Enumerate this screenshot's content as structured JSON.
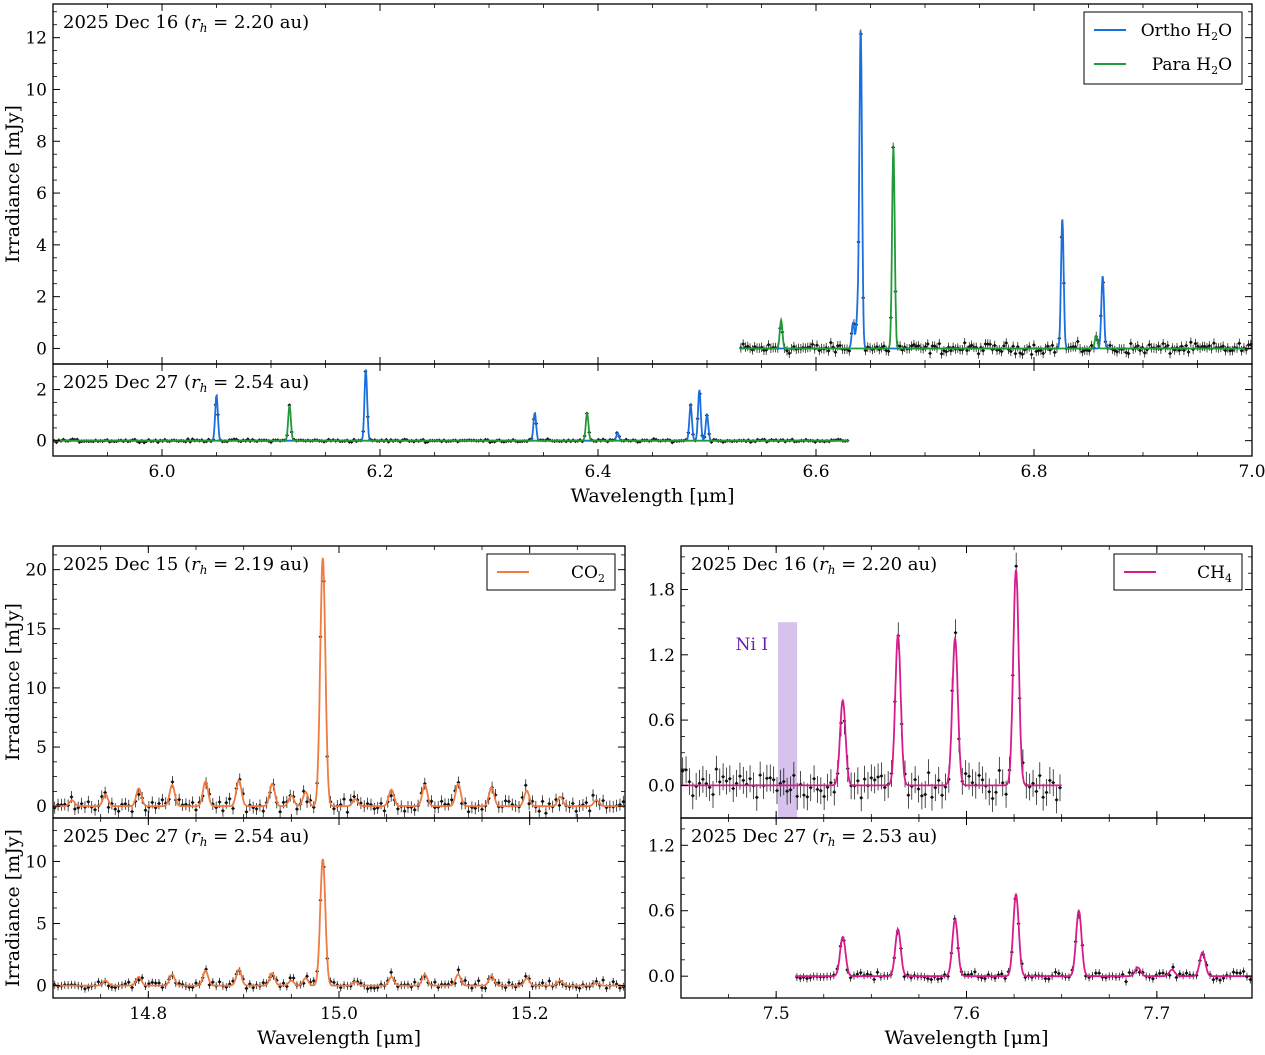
{
  "chart_data": [
    {
      "type": "line",
      "title": "2025 Dec 16 (r_h = 2.20 au)",
      "title_parts": {
        "date": "2025 Dec 16",
        "rh": "2.20 au"
      },
      "ylabel": "Irradiance [mJy]",
      "xlabel": "",
      "xlim": [
        5.9,
        7.0
      ],
      "ylim": [
        -0.6,
        13.3
      ],
      "yticks": [
        0,
        2,
        4,
        6,
        8,
        10,
        12
      ],
      "xticks": [
        6.0,
        6.2,
        6.4,
        6.6,
        6.8,
        7.0
      ],
      "data_range": [
        6.53,
        7.0
      ],
      "legend_position": "top-right",
      "series": [
        {
          "name": "Ortho H₂O",
          "legend_main": "Ortho H",
          "legend_sub": "2",
          "legend_tail": "O",
          "color": "#1a6fe0",
          "lines": [
            [
              6.634,
              1.0
            ],
            [
              6.638,
              1.2
            ],
            [
              6.641,
              12.3
            ],
            [
              6.826,
              5.0
            ],
            [
              6.863,
              2.8
            ]
          ]
        },
        {
          "name": "Para H₂O",
          "legend_main": "Para H",
          "legend_sub": "2",
          "legend_tail": "O",
          "color": "#229a3a",
          "lines": [
            [
              6.568,
              1.1
            ],
            [
              6.671,
              7.8
            ],
            [
              6.857,
              0.5
            ]
          ]
        }
      ]
    },
    {
      "type": "line",
      "title": "2025 Dec 27 (r_h = 2.54 au)",
      "title_parts": {
        "date": "2025 Dec 27",
        "rh": "2.54 au"
      },
      "ylabel": "",
      "xlabel": "Wavelength [μm]",
      "xlim": [
        5.9,
        7.0
      ],
      "ylim": [
        -0.6,
        3.0
      ],
      "yticks": [
        0,
        2
      ],
      "xticks": [
        6.0,
        6.2,
        6.4,
        6.6,
        6.8,
        7.0
      ],
      "xticklabels": [
        "6.0",
        "6.2",
        "6.4",
        "6.6",
        "6.8",
        "7.0"
      ],
      "data_range": [
        5.9,
        6.63
      ],
      "series": [
        {
          "name": "",
          "color": "#1a6fe0",
          "lines": [
            [
              6.05,
              1.8
            ],
            [
              6.187,
              2.8
            ],
            [
              6.342,
              1.1
            ],
            [
              6.485,
              1.4
            ],
            [
              6.493,
              2.0
            ],
            [
              6.5,
              1.0
            ],
            [
              6.418,
              0.3
            ]
          ]
        },
        {
          "name": "",
          "color": "#229a3a",
          "lines": [
            [
              6.117,
              1.4
            ],
            [
              6.39,
              1.1
            ]
          ]
        }
      ]
    },
    {
      "type": "line",
      "title": "2025 Dec 15 (r_h = 2.19 au)",
      "title_parts": {
        "date": "2025 Dec 15",
        "rh": "2.19 au"
      },
      "ylabel": "Irradiance [mJy]",
      "xlabel": "",
      "xlim": [
        14.7,
        15.3
      ],
      "ylim": [
        -1.0,
        22.0
      ],
      "yticks": [
        0,
        5,
        10,
        15,
        20
      ],
      "xticks": [
        14.8,
        15.0,
        15.2
      ],
      "data_range": [
        14.7,
        15.3
      ],
      "legend_position": "top-right",
      "series": [
        {
          "name": "CO₂",
          "legend_main": "CO",
          "legend_sub": "2",
          "legend_tail": "",
          "color": "#f07a40",
          "lines": [
            [
              14.983,
              21.0
            ],
            [
              14.965,
              1.2
            ],
            [
              14.755,
              1.0
            ],
            [
              14.79,
              1.5
            ],
            [
              14.825,
              1.8
            ],
            [
              14.86,
              2.1
            ],
            [
              14.895,
              2.2
            ],
            [
              14.93,
              1.9
            ],
            [
              14.95,
              0.9
            ],
            [
              15.017,
              0.6
            ],
            [
              15.055,
              1.4
            ],
            [
              15.09,
              1.8
            ],
            [
              15.125,
              1.9
            ],
            [
              15.16,
              1.6
            ],
            [
              15.197,
              1.3
            ],
            [
              15.232,
              0.8
            ],
            [
              15.27,
              0.5
            ],
            [
              14.72,
              0.5
            ]
          ]
        }
      ]
    },
    {
      "type": "line",
      "title": "2025 Dec 27 (r_h = 2.54 au)",
      "title_parts": {
        "date": "2025 Dec 27",
        "rh": "2.54 au"
      },
      "ylabel": "Irradiance [mJy]",
      "xlabel": "Wavelength [μm]",
      "xlim": [
        14.7,
        15.3
      ],
      "ylim": [
        -1.0,
        13.5
      ],
      "yticks": [
        0,
        5,
        10
      ],
      "xticks": [
        14.8,
        15.0,
        15.2
      ],
      "xticklabels": [
        "14.8",
        "15.0",
        "15.2"
      ],
      "data_range": [
        14.7,
        15.3
      ],
      "series": [
        {
          "name": "",
          "color": "#f07a40",
          "lines": [
            [
              14.983,
              10.2
            ],
            [
              14.965,
              0.6
            ],
            [
              14.755,
              0.4
            ],
            [
              14.79,
              0.7
            ],
            [
              14.825,
              0.9
            ],
            [
              14.86,
              1.2
            ],
            [
              14.895,
              1.3
            ],
            [
              14.93,
              1.0
            ],
            [
              14.95,
              0.4
            ],
            [
              15.017,
              0.3
            ],
            [
              15.055,
              0.7
            ],
            [
              15.09,
              0.9
            ],
            [
              15.125,
              0.9
            ],
            [
              15.16,
              0.8
            ],
            [
              15.197,
              0.6
            ],
            [
              15.232,
              0.4
            ],
            [
              15.27,
              0.2
            ]
          ]
        }
      ]
    },
    {
      "type": "line",
      "title": "2025 Dec 16 (r_h = 2.20 au)",
      "title_parts": {
        "date": "2025 Dec 16",
        "rh": "2.20 au"
      },
      "ylabel": "",
      "xlabel": "",
      "xlim": [
        7.45,
        7.75
      ],
      "ylim": [
        -0.3,
        2.2
      ],
      "yticks": [
        0.0,
        0.6,
        1.2,
        1.8
      ],
      "yticklabels": [
        "0.0",
        "0.6",
        "1.2",
        "1.8"
      ],
      "xticks": [
        7.5,
        7.6,
        7.7
      ],
      "data_range": [
        7.45,
        7.65
      ],
      "legend_position": "top-right",
      "annotation": {
        "text": "Ni I",
        "x": 7.505,
        "band": [
          7.501,
          7.511
        ],
        "color": "#6a1fb0",
        "band_color": "#c8aee6"
      },
      "series": [
        {
          "name": "CH₄",
          "legend_main": "CH",
          "legend_sub": "4",
          "legend_tail": "",
          "color": "#d81b8c",
          "lines": [
            [
              7.535,
              0.78
            ],
            [
              7.564,
              1.38
            ],
            [
              7.594,
              1.35
            ],
            [
              7.626,
              1.98
            ]
          ]
        }
      ]
    },
    {
      "type": "line",
      "title": "2025 Dec 27 (r_h = 2.53 au)",
      "title_parts": {
        "date": "2025 Dec 27",
        "rh": "2.53 au"
      },
      "ylabel": "",
      "xlabel": "Wavelength [μm]",
      "xlim": [
        7.45,
        7.75
      ],
      "ylim": [
        -0.2,
        1.45
      ],
      "yticks": [
        0.0,
        0.6,
        1.2
      ],
      "yticklabels": [
        "0.0",
        "0.6",
        "1.2"
      ],
      "xticks": [
        7.5,
        7.6,
        7.7
      ],
      "xticklabels": [
        "7.5",
        "7.6",
        "7.7"
      ],
      "data_range": [
        7.51,
        7.75
      ],
      "series": [
        {
          "name": "",
          "color": "#d81b8c",
          "lines": [
            [
              7.535,
              0.36
            ],
            [
              7.564,
              0.43
            ],
            [
              7.594,
              0.52
            ],
            [
              7.626,
              0.75
            ],
            [
              7.659,
              0.6
            ],
            [
              7.69,
              0.08
            ],
            [
              7.724,
              0.22
            ],
            [
              7.708,
              0.06
            ]
          ]
        }
      ]
    }
  ]
}
